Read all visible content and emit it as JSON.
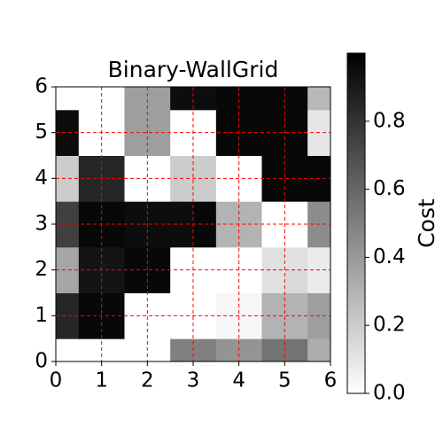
{
  "chart_data": {
    "type": "heatmap",
    "title": "Binary-WallGrid",
    "colorbar_label": "Cost",
    "colormap": "gray_r",
    "xlim": [
      0,
      6
    ],
    "ylim": [
      0,
      6
    ],
    "xticks": [
      0,
      1,
      2,
      3,
      4,
      5,
      6
    ],
    "yticks": [
      0,
      1,
      2,
      3,
      4,
      5,
      6
    ],
    "clim": [
      0,
      1
    ],
    "cticks": [
      {
        "value": 0,
        "label": "0.0"
      },
      0.2,
      0.4,
      0.6,
      0.8
    ],
    "grid": true,
    "grid_color": "#ff0000",
    "z": [
      [
        0,
        0,
        0,
        0,
        0,
        0.5,
        0.5,
        0.42,
        0.42,
        0.55,
        0.55,
        0.32
      ],
      [
        0.85,
        0.97,
        0.97,
        0,
        0,
        0,
        0,
        0.03,
        0.03,
        0.3,
        0.3,
        0.38
      ],
      [
        0.85,
        0.97,
        0.97,
        0,
        0,
        0,
        0,
        0.03,
        0.03,
        0.3,
        0.3,
        0.38
      ],
      [
        0.35,
        0.92,
        0.92,
        0.97,
        0.97,
        0,
        0,
        0,
        0,
        0.12,
        0.15,
        0.08
      ],
      [
        0.35,
        0.92,
        0.92,
        0.97,
        0.97,
        0,
        0,
        0,
        0,
        0.12,
        0.12,
        0.08
      ],
      [
        0.75,
        0.97,
        0.97,
        0.95,
        0.95,
        0.95,
        0.97,
        0.3,
        0.3,
        0,
        0,
        0.45
      ],
      [
        0.75,
        0.97,
        0.97,
        0.95,
        0.95,
        0.95,
        0.97,
        0.3,
        0.3,
        0,
        0,
        0.45
      ],
      [
        0.2,
        0.85,
        0.85,
        0,
        0,
        0.2,
        0.2,
        0,
        0,
        0.97,
        0.97,
        0.97
      ],
      [
        0.2,
        0.85,
        0.85,
        0,
        0,
        0.2,
        0.2,
        0,
        0,
        0.97,
        0.97,
        0.97
      ],
      [
        0.95,
        0,
        0,
        0.38,
        0.38,
        0,
        0,
        0.97,
        0.97,
        0.97,
        0.97,
        0.1
      ],
      [
        0.95,
        0,
        0,
        0.38,
        0.38,
        0,
        0,
        0.97,
        0.97,
        0.97,
        0.97,
        0.1
      ],
      [
        0,
        0,
        0,
        0.38,
        0.38,
        0.95,
        0.95,
        0.97,
        0.97,
        0.97,
        0.97,
        0.28
      ]
    ]
  }
}
